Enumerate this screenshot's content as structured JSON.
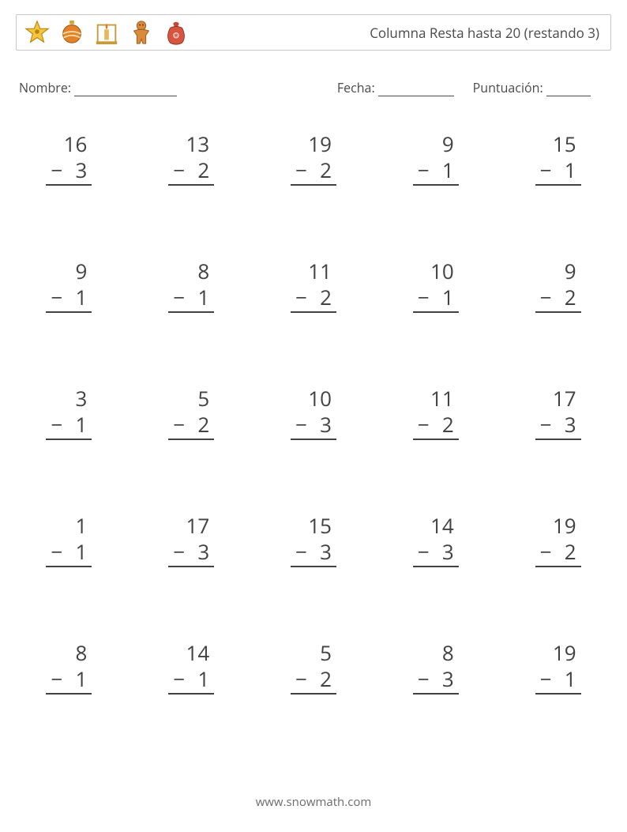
{
  "header": {
    "title": "Columna Resta hasta 20 (restando 3)",
    "icons": [
      "star-icon",
      "ornament-icon",
      "candle-icon",
      "gingerbread-icon",
      "sack-icon"
    ],
    "icon_size": 34
  },
  "info": {
    "name_label": "Nombre:",
    "date_label": "Fecha:",
    "score_label": "Puntuación:",
    "name_blank_width": 130,
    "date_blank_width": 96,
    "score_blank_width": 56
  },
  "style": {
    "page_bg": "#ffffff",
    "border_color": "#c8c8c8",
    "text_color": "#424242",
    "font_size_problem": 26,
    "font_size_title": 17,
    "font_size_info": 16,
    "rule_color": "#424242"
  },
  "columns": 5,
  "rows": 5,
  "problems": [
    {
      "minuend": "16",
      "subtrahend": "3",
      "gap": true
    },
    {
      "minuend": "13",
      "subtrahend": "2",
      "gap": true
    },
    {
      "minuend": "19",
      "subtrahend": "2",
      "gap": true
    },
    {
      "minuend": "9",
      "subtrahend": "1",
      "gap": false
    },
    {
      "minuend": "15",
      "subtrahend": "1",
      "gap": true
    },
    {
      "minuend": "9",
      "subtrahend": "1",
      "gap": false
    },
    {
      "minuend": "8",
      "subtrahend": "1",
      "gap": false
    },
    {
      "minuend": "11",
      "subtrahend": "2",
      "gap": true
    },
    {
      "minuend": "10",
      "subtrahend": "1",
      "gap": true
    },
    {
      "minuend": "9",
      "subtrahend": "2",
      "gap": false
    },
    {
      "minuend": "3",
      "subtrahend": "1",
      "gap": false
    },
    {
      "minuend": "5",
      "subtrahend": "2",
      "gap": false
    },
    {
      "minuend": "10",
      "subtrahend": "3",
      "gap": true
    },
    {
      "minuend": "11",
      "subtrahend": "2",
      "gap": true
    },
    {
      "minuend": "17",
      "subtrahend": "3",
      "gap": true
    },
    {
      "minuend": "1",
      "subtrahend": "1",
      "gap": false
    },
    {
      "minuend": "17",
      "subtrahend": "3",
      "gap": true
    },
    {
      "minuend": "15",
      "subtrahend": "3",
      "gap": true
    },
    {
      "minuend": "14",
      "subtrahend": "3",
      "gap": true
    },
    {
      "minuend": "19",
      "subtrahend": "2",
      "gap": true
    },
    {
      "minuend": "8",
      "subtrahend": "1",
      "gap": false
    },
    {
      "minuend": "14",
      "subtrahend": "1",
      "gap": true
    },
    {
      "minuend": "5",
      "subtrahend": "2",
      "gap": false
    },
    {
      "minuend": "8",
      "subtrahend": "3",
      "gap": false
    },
    {
      "minuend": "19",
      "subtrahend": "1",
      "gap": true
    }
  ],
  "footer": {
    "text": "www.snowmath.com"
  }
}
